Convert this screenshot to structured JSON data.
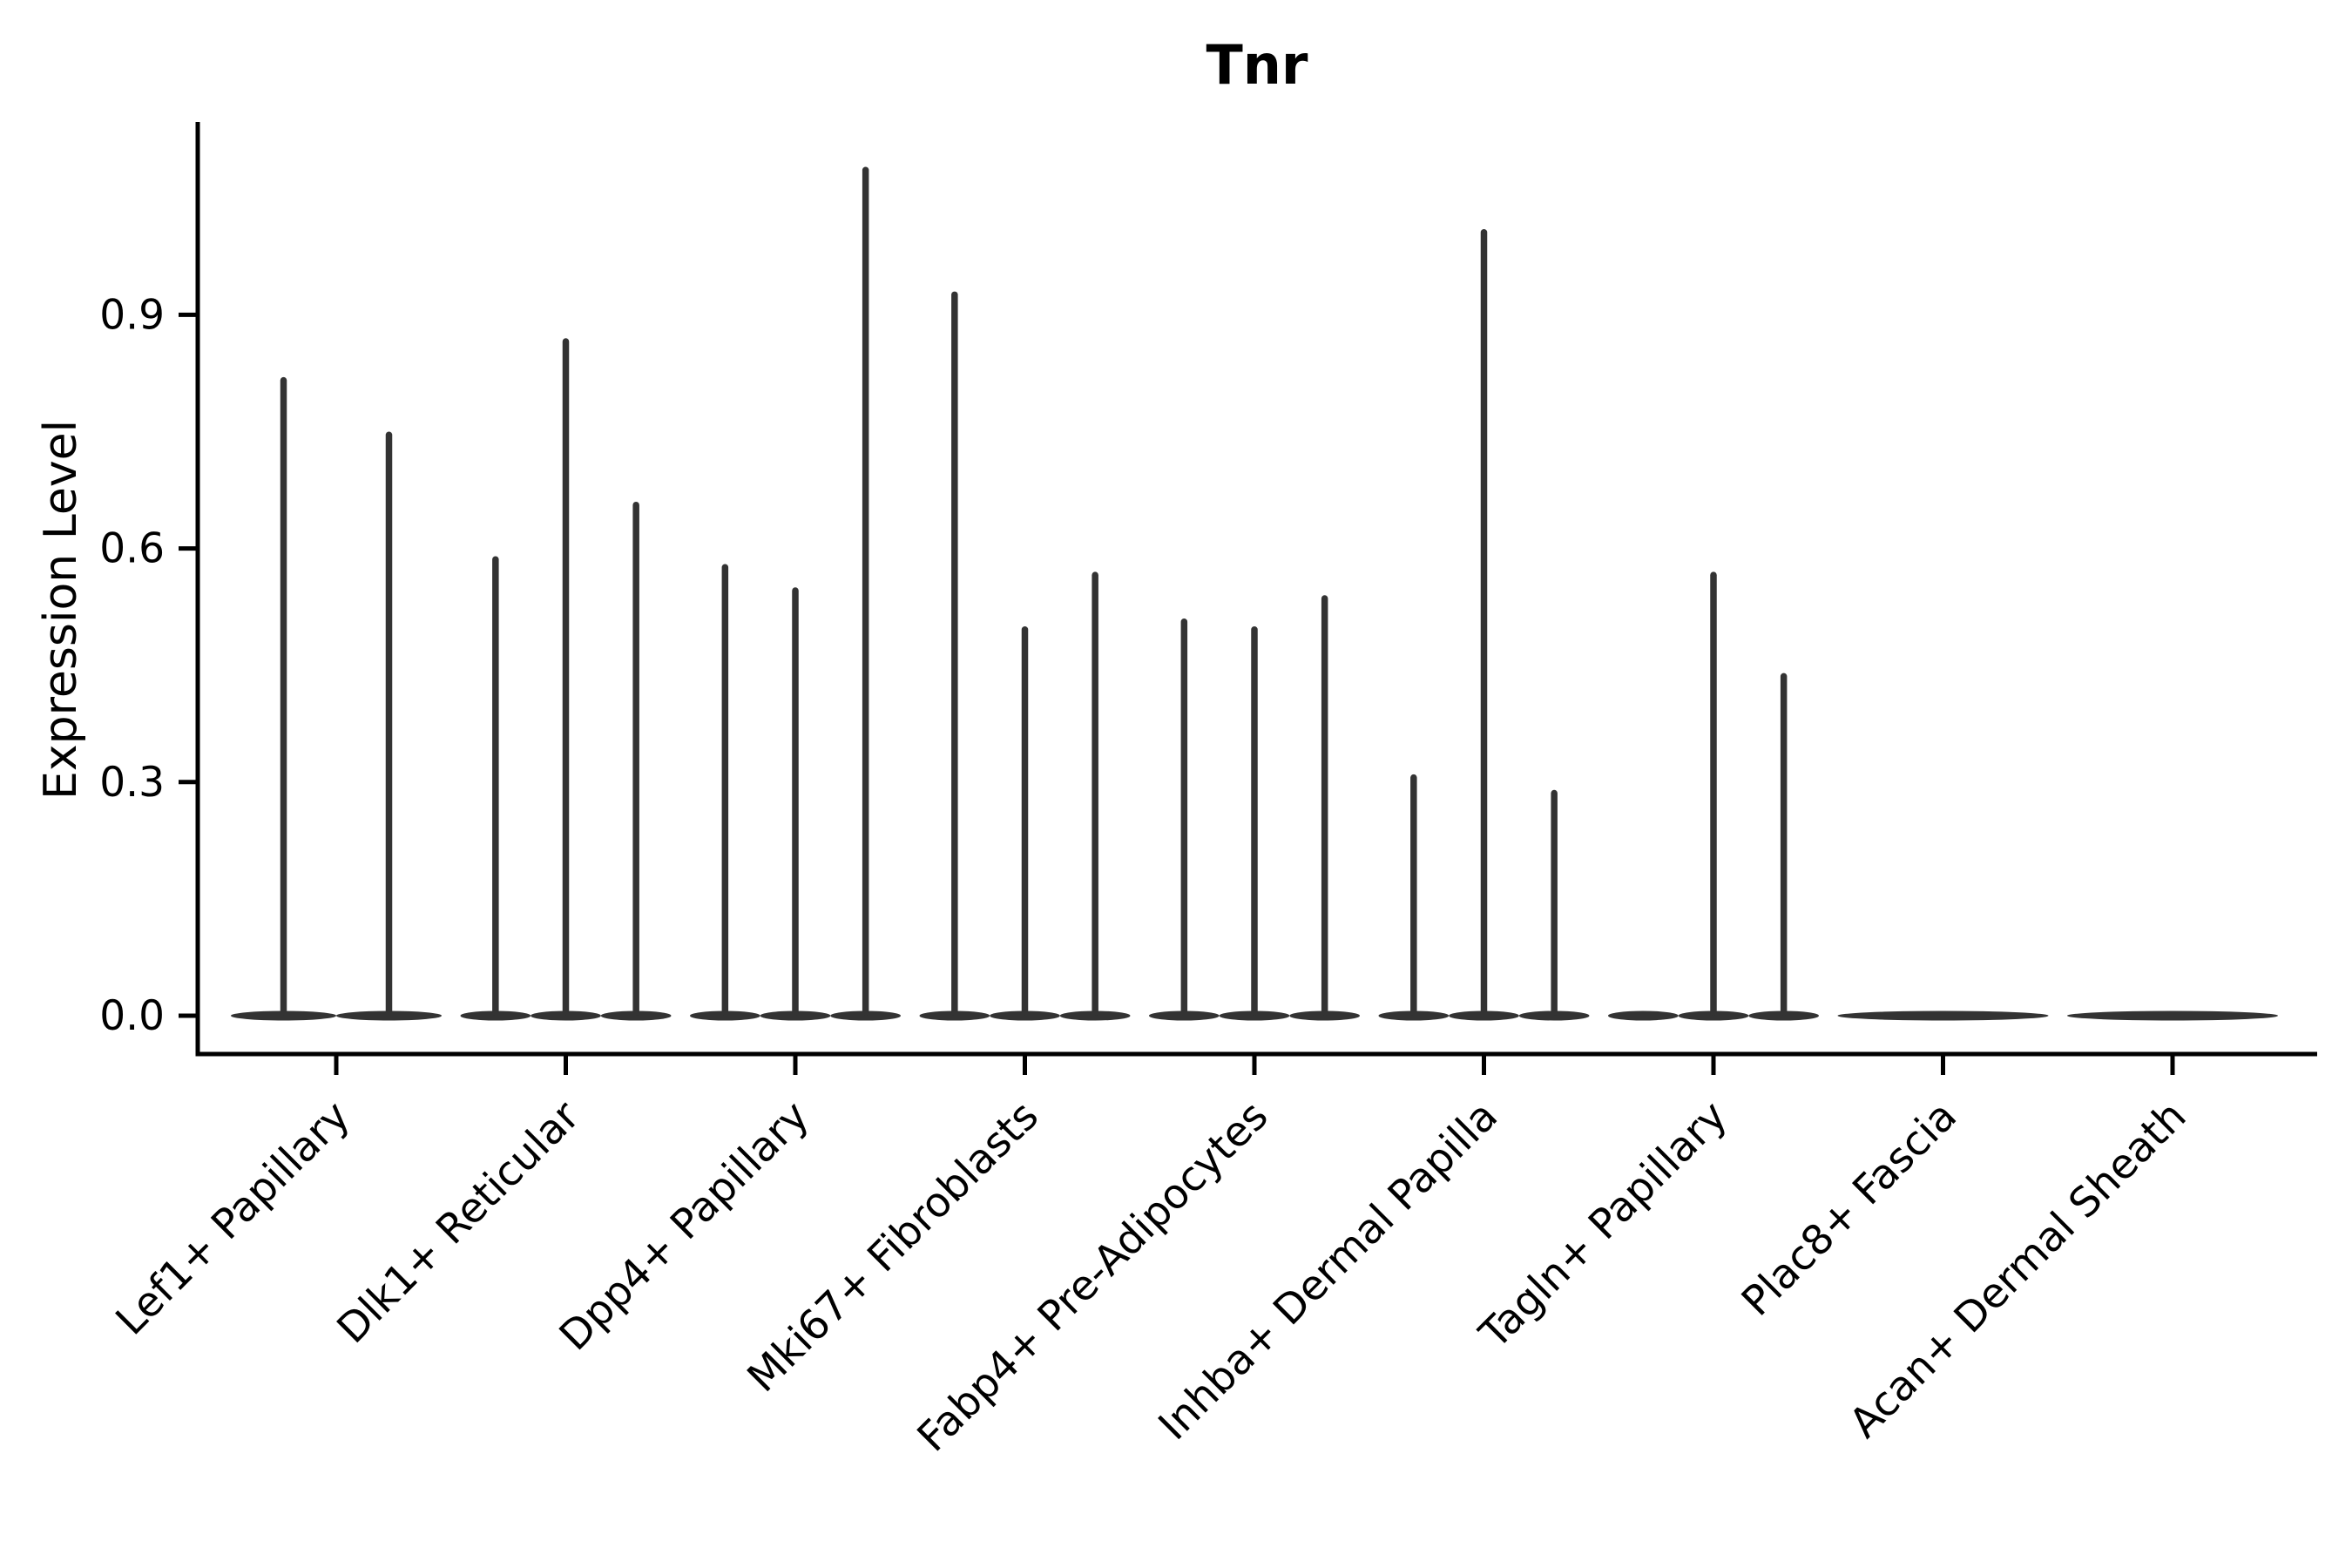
{
  "figure": {
    "title": "Tnr",
    "ylabel": "Expression Level"
  },
  "chart_data": {
    "type": "violin",
    "title": "Tnr",
    "xlabel": "",
    "ylabel": "Expression Level",
    "grid": false,
    "legend": "none",
    "background_color": "#ffffff",
    "violin_color": "#333333",
    "axis_color": "#000000",
    "ylim": [
      -0.05,
      1.15
    ],
    "yticks": [
      0.0,
      0.3,
      0.6,
      0.9
    ],
    "ytick_labels": [
      "0.0",
      "0.3",
      "0.6",
      "0.9"
    ],
    "xtick_label_angle_deg": 45,
    "categories": [
      "Lef1+ Papillary",
      "Dlk1+ Reticular",
      "Dpp4+ Papillary",
      "Mki67+ Fibroblasts",
      "Fabp4+ Pre-Adipocytes",
      "Inhba+ Dermal Papilla",
      "Tagln+ Papillary",
      "Plac8+ Fascia",
      "Acan+ Dermal Sheath"
    ],
    "groups": [
      {
        "category": "Lef1+ Papillary",
        "violin_maxima": [
          0.82,
          0.75
        ]
      },
      {
        "category": "Dlk1+ Reticular",
        "violin_maxima": [
          0.59,
          0.87,
          0.66
        ]
      },
      {
        "category": "Dpp4+ Papillary",
        "violin_maxima": [
          0.58,
          0.55,
          1.09
        ]
      },
      {
        "category": "Mki67+ Fibroblasts",
        "violin_maxima": [
          0.93,
          0.5,
          0.57
        ]
      },
      {
        "category": "Fabp4+ Pre-Adipocytes",
        "violin_maxima": [
          0.51,
          0.5,
          0.54
        ]
      },
      {
        "category": "Inhba+ Dermal Papilla",
        "violin_maxima": [
          0.31,
          1.01,
          0.29
        ]
      },
      {
        "category": "Tagln+ Papillary",
        "violin_maxima": [
          0.0,
          0.57,
          0.44
        ]
      },
      {
        "category": "Plac8+ Fascia",
        "violin_maxima": [
          0.0
        ]
      },
      {
        "category": "Acan+ Dermal Sheath",
        "violin_maxima": [
          0.0
        ]
      }
    ]
  }
}
